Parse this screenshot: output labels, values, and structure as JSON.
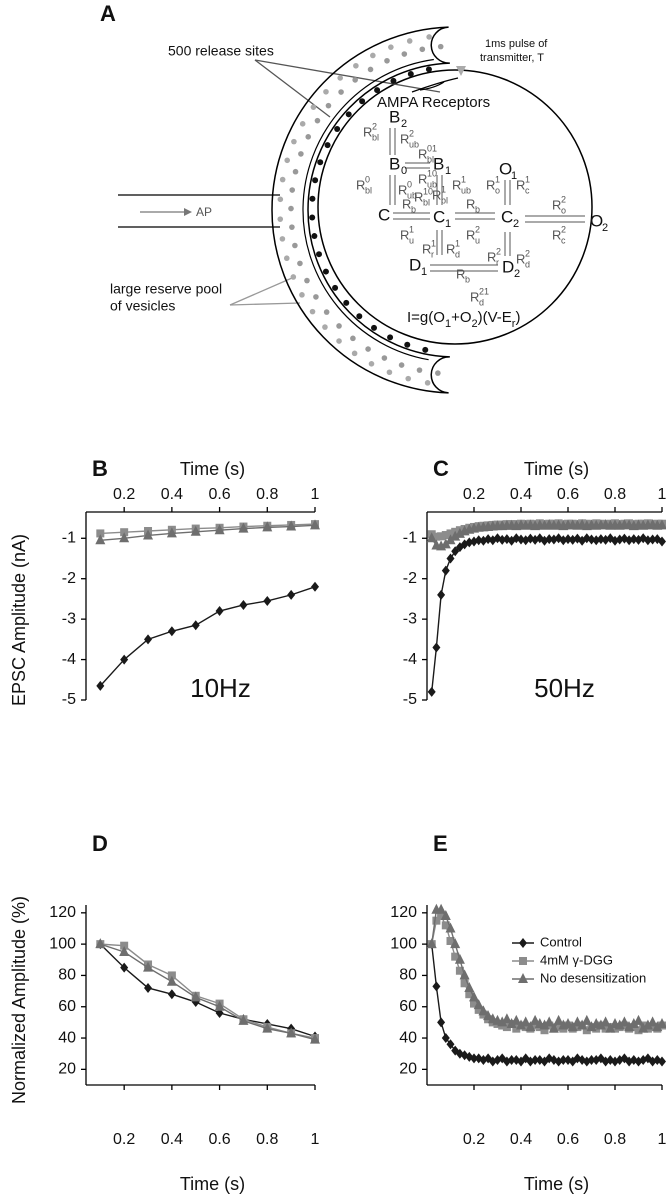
{
  "diagram": {
    "panel": "A",
    "release_sites": "500 release sites",
    "pulse": [
      "1ms pulse of",
      "transmitter, T"
    ],
    "receptors": "AMPA Receptors",
    "ap": "AP",
    "reserve": [
      "large reserve pool",
      "of vesicles"
    ],
    "states": [
      {
        "main": "B",
        "sub": "2"
      },
      {
        "main": "B",
        "sub": "0"
      },
      {
        "main": "B",
        "sub": "1"
      },
      {
        "main": "O",
        "sub": "1"
      },
      {
        "main": "C"
      },
      {
        "main": "C",
        "sub": "1"
      },
      {
        "main": "C",
        "sub": "2"
      },
      {
        "main": "O",
        "sub": "2"
      },
      {
        "main": "D",
        "sub": "1"
      },
      {
        "main": "D",
        "sub": "2"
      }
    ],
    "rates": [
      {
        "main": "R",
        "sup": "2",
        "sub": "bl"
      },
      {
        "main": "R",
        "sup": "2",
        "sub": "ub"
      },
      {
        "main": "R",
        "sup": "01",
        "sub": "bl"
      },
      {
        "main": "R",
        "sup": "0",
        "sub": "bl"
      },
      {
        "main": "R",
        "sup": "0",
        "sub": "ub"
      },
      {
        "main": "R",
        "sup": "10",
        "sub": "ub"
      },
      {
        "main": "R",
        "sup": "10",
        "sub": "bl"
      },
      {
        "main": "R",
        "sup": "1",
        "sub": "bl"
      },
      {
        "main": "R",
        "sup": "1",
        "sub": "ub"
      },
      {
        "main": "R",
        "sub": "b"
      },
      {
        "main": "R",
        "sup": "1",
        "sub": "u"
      },
      {
        "main": "R",
        "sub": "b"
      },
      {
        "main": "R",
        "sup": "2",
        "sub": "u"
      },
      {
        "main": "R",
        "sup": "1",
        "sub": "r"
      },
      {
        "main": "R",
        "sup": "1",
        "sub": "d"
      },
      {
        "main": "R",
        "sup": "1",
        "sub": "o"
      },
      {
        "main": "R",
        "sup": "1",
        "sub": "c"
      },
      {
        "main": "R",
        "sup": "2",
        "sub": "o"
      },
      {
        "main": "R",
        "sup": "2",
        "sub": "c"
      },
      {
        "main": "R",
        "sup": "2",
        "sub": "r"
      },
      {
        "main": "R",
        "sup": "2",
        "sub": "d"
      },
      {
        "main": "R",
        "sub": "b"
      },
      {
        "main": "R",
        "sup": "21",
        "sub": "d"
      }
    ],
    "equation": [
      {
        "text": "I=g(O"
      },
      {
        "sub": "1"
      },
      {
        "text": "+O"
      },
      {
        "sub": "2"
      },
      {
        "text": ")(V-E"
      },
      {
        "sub": "r"
      },
      {
        "text": ")"
      }
    ]
  },
  "chart_data": [
    {
      "type": "line",
      "panel": "B",
      "title": "10Hz",
      "xlabel": "Time (s)",
      "ylabel": "EPSC Amplitude (nA)",
      "xaxis_position": "top",
      "xlim": [
        0.04,
        1
      ],
      "xticks": [
        0.2,
        0.4,
        0.6,
        0.8,
        1
      ],
      "ylim": [
        -5,
        -0.35
      ],
      "yticks": [
        -1,
        -2,
        -3,
        -4,
        -5
      ],
      "x": [
        0.1,
        0.2,
        0.3,
        0.4,
        0.5,
        0.6,
        0.7,
        0.8,
        0.9,
        1
      ],
      "series": [
        {
          "color": "#1a1a1a",
          "marker": "diamond",
          "values": [
            -4.65,
            -4.0,
            -3.5,
            -3.3,
            -3.15,
            -2.8,
            -2.65,
            -2.55,
            -2.4,
            -2.2
          ]
        },
        {
          "color": "#8c8c8c",
          "marker": "square",
          "values": [
            -0.88,
            -0.85,
            -0.82,
            -0.79,
            -0.76,
            -0.74,
            -0.71,
            -0.69,
            -0.67,
            -0.65
          ]
        },
        {
          "color": "#6e6e6e",
          "marker": "triangle",
          "values": [
            -1.05,
            -1.0,
            -0.93,
            -0.88,
            -0.84,
            -0.8,
            -0.76,
            -0.73,
            -0.71,
            -0.68
          ]
        }
      ]
    },
    {
      "type": "line",
      "panel": "C",
      "title": "50Hz",
      "xlabel": "Time (s)",
      "xaxis_position": "top",
      "xlim": [
        0,
        1
      ],
      "xticks": [
        0.2,
        0.4,
        0.6,
        0.8,
        1
      ],
      "ylim": [
        -5,
        -0.35
      ],
      "yticks": [
        -1,
        -2,
        -3,
        -4,
        -5
      ],
      "x": [
        0.02,
        0.04,
        0.06,
        0.08,
        0.1,
        0.12,
        0.14,
        0.16,
        0.18,
        0.2,
        0.22,
        0.24,
        0.26,
        0.28,
        0.3,
        0.32,
        0.34,
        0.36,
        0.38,
        0.4,
        0.42,
        0.44,
        0.46,
        0.48,
        0.5,
        0.52,
        0.54,
        0.56,
        0.58,
        0.6,
        0.62,
        0.64,
        0.66,
        0.68,
        0.7,
        0.72,
        0.74,
        0.76,
        0.78,
        0.8,
        0.82,
        0.84,
        0.86,
        0.88,
        0.9,
        0.92,
        0.94,
        0.96,
        0.98,
        1
      ],
      "series": [
        {
          "color": "#1a1a1a",
          "marker": "diamond",
          "values": [
            -4.8,
            -3.7,
            -2.4,
            -1.8,
            -1.5,
            -1.32,
            -1.22,
            -1.15,
            -1.1,
            -1.08,
            -1.05,
            -1.06,
            -1.02,
            -1.05,
            -1.0,
            -1.04,
            -1.02,
            -1.06,
            -1.0,
            -1.03,
            -1.05,
            -1.01,
            -1.04,
            -1.0,
            -1.06,
            -1.02,
            -1.03,
            -1.0,
            -1.05,
            -1.02,
            -1.04,
            -1.01,
            -1.06,
            -1.0,
            -1.03,
            -1.05,
            -1.02,
            -1.04,
            -1.0,
            -1.06,
            -1.03,
            -1.01,
            -1.05,
            -1.02,
            -1.04,
            -1.0,
            -1.05,
            -1.03,
            -1.02,
            -1.08
          ]
        },
        {
          "color": "#8c8c8c",
          "marker": "square",
          "values": [
            -0.9,
            -0.96,
            -0.95,
            -0.92,
            -0.88,
            -0.84,
            -0.8,
            -0.77,
            -0.74,
            -0.72,
            -0.7,
            -0.69,
            -0.68,
            -0.67,
            -0.66,
            -0.66,
            -0.65,
            -0.65,
            -0.65,
            -0.64,
            -0.65,
            -0.64,
            -0.65,
            -0.63,
            -0.65,
            -0.64,
            -0.64,
            -0.63,
            -0.65,
            -0.64,
            -0.64,
            -0.65,
            -0.63,
            -0.64,
            -0.65,
            -0.63,
            -0.64,
            -0.65,
            -0.64,
            -0.63,
            -0.65,
            -0.64,
            -0.63,
            -0.65,
            -0.64,
            -0.64,
            -0.63,
            -0.65,
            -0.64,
            -0.64
          ]
        },
        {
          "color": "#6e6e6e",
          "marker": "triangle",
          "values": [
            -1.0,
            -1.18,
            -1.2,
            -1.15,
            -1.05,
            -0.96,
            -0.89,
            -0.83,
            -0.79,
            -0.76,
            -0.74,
            -0.73,
            -0.72,
            -0.71,
            -0.7,
            -0.7,
            -0.69,
            -0.69,
            -0.7,
            -0.68,
            -0.69,
            -0.68,
            -0.7,
            -0.68,
            -0.69,
            -0.67,
            -0.69,
            -0.68,
            -0.7,
            -0.68,
            -0.68,
            -0.69,
            -0.67,
            -0.7,
            -0.68,
            -0.69,
            -0.68,
            -0.67,
            -0.69,
            -0.68,
            -0.69,
            -0.67,
            -0.68,
            -0.7,
            -0.68,
            -0.69,
            -0.68,
            -0.67,
            -0.69,
            -0.68
          ]
        }
      ]
    },
    {
      "type": "line",
      "panel": "D",
      "xlabel": "Time (s)",
      "ylabel": "Normalized Amplitude (%)",
      "xaxis_position": "bottom",
      "xlim": [
        0.04,
        1
      ],
      "xticks": [
        0.2,
        0.4,
        0.6,
        0.8,
        1
      ],
      "ylim": [
        10,
        125
      ],
      "yticks": [
        20,
        40,
        60,
        80,
        100,
        120
      ],
      "x": [
        0.1,
        0.2,
        0.3,
        0.4,
        0.5,
        0.6,
        0.7,
        0.8,
        0.9,
        1
      ],
      "series": [
        {
          "color": "#1a1a1a",
          "marker": "diamond",
          "values": [
            100,
            85,
            72,
            68,
            63,
            56,
            52,
            49,
            46,
            41
          ]
        },
        {
          "color": "#8c8c8c",
          "marker": "square",
          "values": [
            100,
            99,
            87,
            80,
            67,
            62,
            52,
            47,
            43,
            40
          ]
        },
        {
          "color": "#6e6e6e",
          "marker": "triangle",
          "values": [
            100,
            95,
            85,
            76,
            66,
            60,
            51,
            46,
            43,
            39
          ]
        }
      ]
    },
    {
      "type": "line",
      "panel": "E",
      "xlabel": "Time (s)",
      "xaxis_position": "bottom",
      "legend": "upper right",
      "xlim": [
        0,
        1
      ],
      "xticks": [
        0.2,
        0.4,
        0.6,
        0.8,
        1
      ],
      "ylim": [
        10,
        125
      ],
      "yticks": [
        20,
        40,
        60,
        80,
        100,
        120
      ],
      "x": [
        0.02,
        0.04,
        0.06,
        0.08,
        0.1,
        0.12,
        0.14,
        0.16,
        0.18,
        0.2,
        0.22,
        0.24,
        0.26,
        0.28,
        0.3,
        0.32,
        0.34,
        0.36,
        0.38,
        0.4,
        0.42,
        0.44,
        0.46,
        0.48,
        0.5,
        0.52,
        0.54,
        0.56,
        0.58,
        0.6,
        0.62,
        0.64,
        0.66,
        0.68,
        0.7,
        0.72,
        0.74,
        0.76,
        0.78,
        0.8,
        0.82,
        0.84,
        0.86,
        0.88,
        0.9,
        0.92,
        0.94,
        0.96,
        0.98,
        1
      ],
      "series": [
        {
          "name": "Control",
          "color": "#1a1a1a",
          "marker": "diamond",
          "values": [
            100,
            73,
            50,
            40,
            36,
            32,
            30,
            29,
            28,
            27,
            27,
            26,
            27,
            25,
            26,
            27,
            25,
            26,
            26,
            25,
            27,
            25,
            26,
            26,
            25,
            27,
            26,
            25,
            26,
            26,
            25,
            27,
            26,
            25,
            26,
            26,
            27,
            25,
            26,
            25,
            26,
            27,
            25,
            26,
            25,
            26,
            27,
            25,
            26,
            25
          ]
        },
        {
          "name": "4mM γ-DGG",
          "color": "#8c8c8c",
          "marker": "square",
          "values": [
            100,
            115,
            118,
            112,
            102,
            92,
            83,
            75,
            68,
            62,
            58,
            55,
            52,
            50,
            49,
            48,
            47,
            49,
            46,
            48,
            47,
            46,
            48,
            47,
            45,
            48,
            46,
            47,
            46,
            48,
            46,
            47,
            48,
            45,
            47,
            46,
            48,
            46,
            47,
            46,
            47,
            48,
            46,
            47,
            45,
            48,
            46,
            47,
            46,
            48
          ]
        },
        {
          "name": "No desensitization",
          "color": "#6e6e6e",
          "marker": "triangle",
          "values": [
            100,
            122,
            122,
            118,
            110,
            100,
            90,
            80,
            72,
            66,
            61,
            57,
            54,
            52,
            51,
            50,
            52,
            49,
            51,
            48,
            50,
            47,
            51,
            49,
            48,
            50,
            46,
            51,
            48,
            49,
            47,
            50,
            48,
            51,
            47,
            49,
            48,
            50,
            46,
            49,
            48,
            50,
            47,
            49,
            51,
            46,
            48,
            50,
            47,
            49
          ]
        }
      ]
    }
  ]
}
